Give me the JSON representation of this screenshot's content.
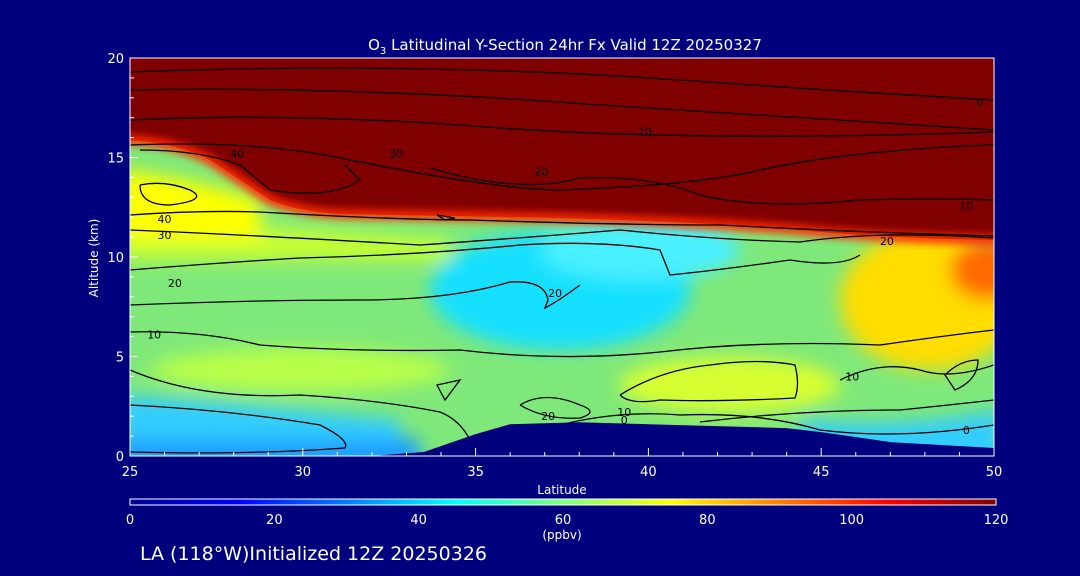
{
  "chart_data": {
    "type": "heatmap",
    "title_prefix": "O",
    "title_sub": "3",
    "title_suffix": " Latitudinal Y-Section 24hr  Fx Valid 12Z 20250327",
    "xlabel": "Latitude",
    "ylabel": "Altitude (km)",
    "xlim": [
      25,
      50
    ],
    "ylim": [
      0,
      20
    ],
    "x_ticks": [
      "25",
      "30",
      "35",
      "40",
      "45",
      "50"
    ],
    "y_ticks": [
      "0",
      "5",
      "10",
      "15",
      "20"
    ],
    "colorbar": {
      "min": 0,
      "max": 120,
      "ticks": [
        "0",
        "20",
        "40",
        "60",
        "80",
        "100",
        "120"
      ],
      "unit": "(ppbv)"
    },
    "terrain": [
      [
        25,
        0
      ],
      [
        32,
        0
      ],
      [
        33.5,
        0.2
      ],
      [
        35,
        1.1
      ],
      [
        36,
        1.6
      ],
      [
        38,
        1.7
      ],
      [
        40,
        1.6
      ],
      [
        42,
        1.5
      ],
      [
        44,
        1.4
      ],
      [
        45,
        1.2
      ],
      [
        47,
        0.7
      ],
      [
        50,
        0.4
      ]
    ],
    "tropopause_altitude": [
      [
        25,
        16
      ],
      [
        28,
        13
      ],
      [
        32,
        12.2
      ],
      [
        36,
        12
      ],
      [
        40,
        11.7
      ],
      [
        44,
        11.3
      ],
      [
        47,
        11
      ],
      [
        50,
        10.9
      ]
    ],
    "contour_labels": [
      {
        "text": "0",
        "lat": 49.6,
        "alt": 17.8
      },
      {
        "text": "10",
        "lat": 39.9,
        "alt": 16.3
      },
      {
        "text": "30",
        "lat": 32.7,
        "alt": 15.2
      },
      {
        "text": "40",
        "lat": 28.1,
        "alt": 15.2
      },
      {
        "text": "20",
        "lat": 36.9,
        "alt": 14.3
      },
      {
        "text": "10",
        "lat": 49.2,
        "alt": 12.6
      },
      {
        "text": "40",
        "lat": 26.0,
        "alt": 11.9
      },
      {
        "text": "30",
        "lat": 26.0,
        "alt": 11.1
      },
      {
        "text": "20",
        "lat": 46.9,
        "alt": 10.8
      },
      {
        "text": "20",
        "lat": 26.3,
        "alt": 8.7
      },
      {
        "text": "20",
        "lat": 37.3,
        "alt": 8.2
      },
      {
        "text": "10",
        "lat": 25.7,
        "alt": 6.1
      },
      {
        "text": "10",
        "lat": 45.9,
        "alt": 4.0
      },
      {
        "text": "20",
        "lat": 37.1,
        "alt": 2.0
      },
      {
        "text": "10",
        "lat": 39.3,
        "alt": 2.2
      },
      {
        "text": "0",
        "lat": 39.3,
        "alt": 1.8
      },
      {
        "text": "0",
        "lat": 49.2,
        "alt": 1.3
      }
    ]
  },
  "footer": {
    "text": "LA (118°W)Initialized 12Z 20250326"
  }
}
